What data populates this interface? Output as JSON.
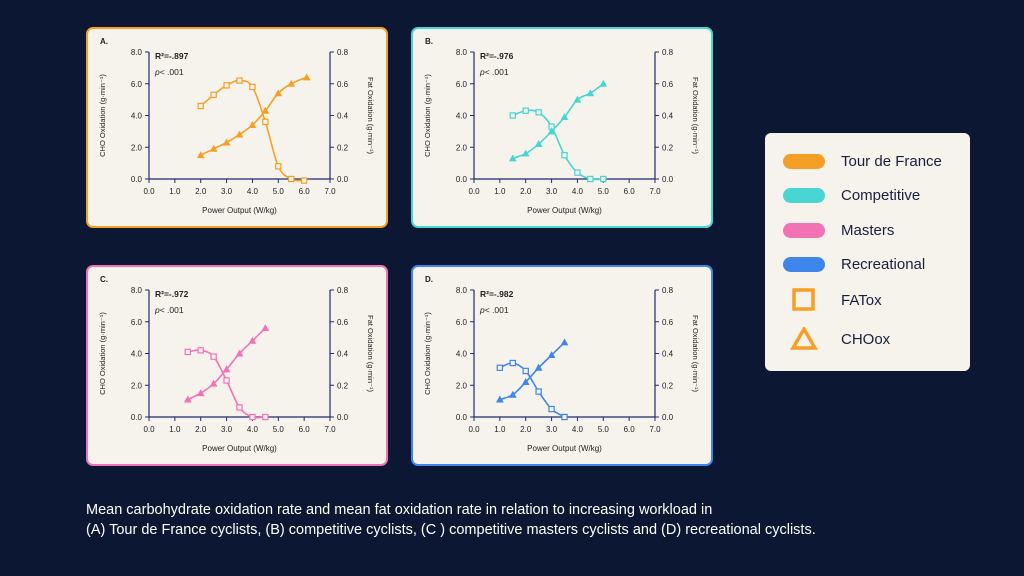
{
  "legend": {
    "items": [
      {
        "label": "Tour de France",
        "color": "#f5a025"
      },
      {
        "label": "Competitive",
        "color": "#48d6d2"
      },
      {
        "label": "Masters",
        "color": "#f272b6"
      },
      {
        "label": "Recreational",
        "color": "#3f86ec"
      }
    ],
    "fat_label": "FATox",
    "cho_label": "CHOox",
    "marker_color": "#f5a025"
  },
  "caption": {
    "line1": "Mean carbohydrate oxidation rate and mean fat oxidation rate in relation to increasing workload in",
    "line2": "(A) Tour de France cyclists, (B) competitive cyclists, (C ) competitive masters cyclists and (D) recreational cyclists."
  },
  "chart_data": [
    {
      "type": "line",
      "panel_label": "A.",
      "color": "#f5a025",
      "stat_r2": "R²=-.897",
      "stat_p": "< .001",
      "xlabel": "Power Output (W/kg)",
      "ylabel_left": "CHO Oxidation (g·min⁻¹)",
      "ylabel_right": "Fat Oxidation (g·min⁻¹)",
      "xlim": [
        0,
        7
      ],
      "ylim_left": [
        0,
        8
      ],
      "ylim_right": [
        0,
        0.8
      ],
      "x_ticks": [
        "0.0",
        "1.0",
        "2.0",
        "3.0",
        "4.0",
        "5.0",
        "6.0",
        "7.0"
      ],
      "y_left_ticks": [
        "0.0",
        "2.0",
        "4.0",
        "6.0",
        "8.0"
      ],
      "y_right_ticks": [
        "0.0",
        "0.2",
        "0.4",
        "0.6",
        "0.8"
      ],
      "series": [
        {
          "name": "FATox",
          "marker": "square",
          "axis": "right",
          "x": [
            2.0,
            2.5,
            3.0,
            3.5,
            4.0,
            4.5,
            5.0,
            5.5,
            6.0
          ],
          "y": [
            0.46,
            0.53,
            0.59,
            0.62,
            0.58,
            0.36,
            0.08,
            0.0,
            -0.01
          ]
        },
        {
          "name": "CHOox",
          "marker": "triangle",
          "axis": "left",
          "x": [
            2.0,
            2.5,
            3.0,
            3.5,
            4.0,
            4.5,
            5.0,
            5.5,
            6.1
          ],
          "y": [
            1.5,
            1.9,
            2.3,
            2.8,
            3.4,
            4.3,
            5.4,
            6.0,
            6.4
          ]
        }
      ]
    },
    {
      "type": "line",
      "panel_label": "B.",
      "color": "#48d6d2",
      "stat_r2": "R²=-.976",
      "stat_p": "< .001",
      "xlabel": "Power Output (W/kg)",
      "ylabel_left": "CHO Oxidation (g·min⁻¹)",
      "ylabel_right": "Fat Oxidation (g·min⁻¹)",
      "xlim": [
        0,
        7
      ],
      "ylim_left": [
        0,
        8
      ],
      "ylim_right": [
        0,
        0.8
      ],
      "x_ticks": [
        "0.0",
        "1.0",
        "2.0",
        "3.0",
        "4.0",
        "5.0",
        "6.0",
        "7.0"
      ],
      "y_left_ticks": [
        "0.0",
        "2.0",
        "4.0",
        "6.0",
        "8.0"
      ],
      "y_right_ticks": [
        "0.0",
        "0.2",
        "0.4",
        "0.6",
        "0.8"
      ],
      "series": [
        {
          "name": "FATox",
          "marker": "square",
          "axis": "right",
          "x": [
            1.5,
            2.0,
            2.5,
            3.0,
            3.5,
            4.0,
            4.5,
            5.0
          ],
          "y": [
            0.4,
            0.43,
            0.42,
            0.33,
            0.15,
            0.04,
            0.0,
            0.0
          ]
        },
        {
          "name": "CHOox",
          "marker": "triangle",
          "axis": "left",
          "x": [
            1.5,
            2.0,
            2.5,
            3.0,
            3.5,
            4.0,
            4.5,
            5.0
          ],
          "y": [
            1.3,
            1.6,
            2.2,
            3.0,
            3.9,
            5.0,
            5.4,
            6.0
          ]
        }
      ]
    },
    {
      "type": "line",
      "panel_label": "C.",
      "color": "#f272b6",
      "stat_r2": "R²=-.972",
      "stat_p": "< .001",
      "xlabel": "Power Output (W/kg)",
      "ylabel_left": "CHO Oxidation (g·min⁻¹)",
      "ylabel_right": "Fat Oxidation (g·min⁻¹)",
      "xlim": [
        0,
        7
      ],
      "ylim_left": [
        0,
        8
      ],
      "ylim_right": [
        0,
        0.8
      ],
      "x_ticks": [
        "0.0",
        "1.0",
        "2.0",
        "3.0",
        "4.0",
        "5.0",
        "6.0",
        "7.0"
      ],
      "y_left_ticks": [
        "0.0",
        "2.0",
        "4.0",
        "6.0",
        "8.0"
      ],
      "y_right_ticks": [
        "0.0",
        "0.2",
        "0.4",
        "0.6",
        "0.8"
      ],
      "series": [
        {
          "name": "FATox",
          "marker": "square",
          "axis": "right",
          "x": [
            1.5,
            2.0,
            2.5,
            3.0,
            3.5,
            4.0,
            4.5
          ],
          "y": [
            0.41,
            0.42,
            0.38,
            0.23,
            0.06,
            0.0,
            0.0
          ]
        },
        {
          "name": "CHOox",
          "marker": "triangle",
          "axis": "left",
          "x": [
            1.5,
            2.0,
            2.5,
            3.0,
            3.5,
            4.0,
            4.5
          ],
          "y": [
            1.1,
            1.5,
            2.1,
            3.0,
            4.0,
            4.8,
            5.6
          ]
        }
      ]
    },
    {
      "type": "line",
      "panel_label": "D.",
      "color": "#3f86ec",
      "stat_r2": "R²=-.982",
      "stat_p": "< .001",
      "xlabel": "Power Output (W/kg)",
      "ylabel_left": "CHO Oxidation (g·min⁻¹)",
      "ylabel_right": "Fat Oxidation (g·min⁻¹)",
      "xlim": [
        0,
        7
      ],
      "ylim_left": [
        0,
        8
      ],
      "ylim_right": [
        0,
        0.8
      ],
      "x_ticks": [
        "0.0",
        "1.0",
        "2.0",
        "3.0",
        "4.0",
        "5.0",
        "6.0",
        "7.0"
      ],
      "y_left_ticks": [
        "0.0",
        "2.0",
        "4.0",
        "6.0",
        "8.0"
      ],
      "y_right_ticks": [
        "0.0",
        "0.2",
        "0.4",
        "0.6",
        "0.8"
      ],
      "series": [
        {
          "name": "FATox",
          "marker": "square",
          "axis": "right",
          "x": [
            1.0,
            1.5,
            2.0,
            2.5,
            3.0,
            3.5
          ],
          "y": [
            0.31,
            0.34,
            0.29,
            0.16,
            0.05,
            0.0
          ]
        },
        {
          "name": "CHOox",
          "marker": "triangle",
          "axis": "left",
          "x": [
            1.0,
            1.5,
            2.0,
            2.5,
            3.0,
            3.5
          ],
          "y": [
            1.1,
            1.4,
            2.2,
            3.1,
            3.9,
            4.7
          ]
        }
      ]
    }
  ]
}
